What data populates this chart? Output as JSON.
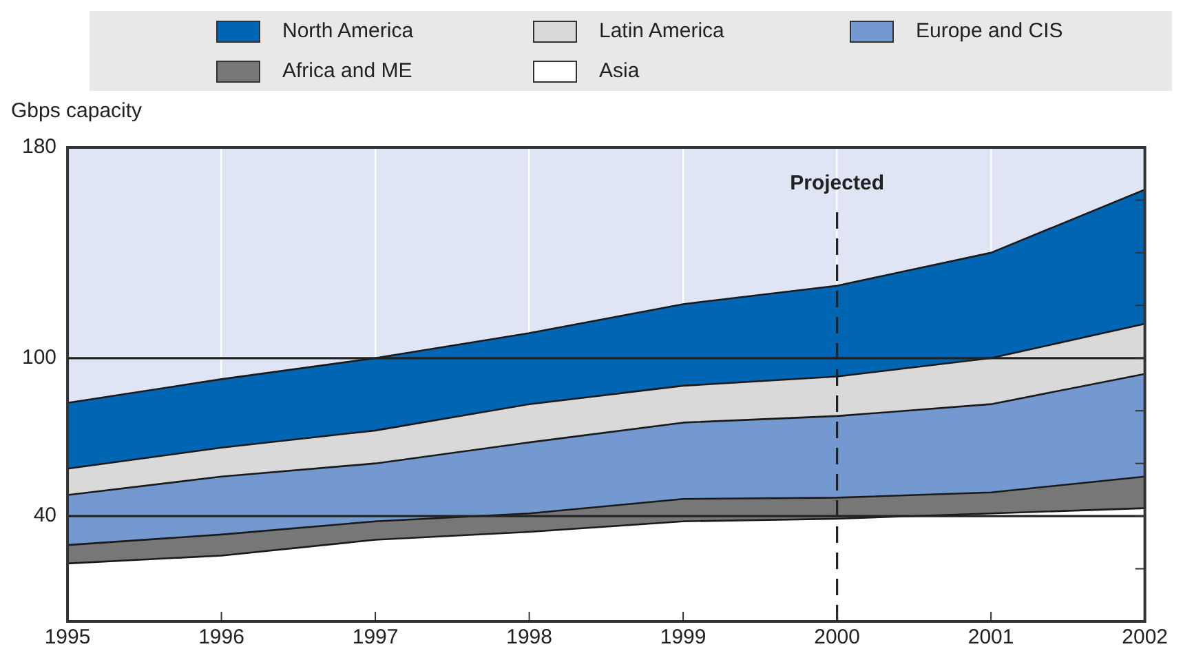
{
  "chart_data": {
    "type": "area",
    "ylabel": "Gbps capacity",
    "stacked": true,
    "x": [
      1995,
      1996,
      1997,
      1998,
      1999,
      2000,
      2001,
      2002
    ],
    "series": [
      {
        "name": "Asia",
        "color": "#ffffff",
        "values": [
          22,
          25,
          31,
          34,
          38,
          39,
          41,
          43
        ]
      },
      {
        "name": "Africa and ME",
        "color": "#777777",
        "values": [
          7,
          8,
          7,
          7,
          8.5,
          8,
          8,
          12
        ]
      },
      {
        "name": "Europe and CIS",
        "color": "#7399d0",
        "values": [
          19,
          22,
          22,
          27,
          29,
          31,
          33.5,
          39
        ]
      },
      {
        "name": "Latin America",
        "color": "#d9d9d9",
        "values": [
          10,
          11,
          12.5,
          14.5,
          14,
          15,
          17.5,
          19
        ]
      },
      {
        "name": "North America",
        "color": "#0066b3",
        "values": [
          25,
          26,
          27.5,
          27,
          31,
          34.5,
          40,
          51
        ]
      }
    ],
    "xlim": [
      1995,
      2002
    ],
    "xticks": [
      1995,
      1996,
      1997,
      1998,
      1999,
      2000,
      2001,
      2002
    ],
    "ylim": [
      0,
      180
    ],
    "yticks": [
      {
        "value": 0,
        "label": null
      },
      {
        "value": 20,
        "label": null
      },
      40,
      {
        "value": 60,
        "label": null
      },
      {
        "value": 80,
        "label": null
      },
      100,
      {
        "value": 120,
        "label": null
      },
      {
        "value": 140,
        "label": null
      },
      {
        "value": 160,
        "label": null
      },
      180
    ],
    "ref_lines": [
      {
        "axis": "x",
        "value": 2000,
        "label": "Projected",
        "line_style": "dashed",
        "color": "#222222"
      },
      {
        "axis": "y",
        "value": 100,
        "color": "#222222"
      },
      {
        "axis": "y",
        "value": 40,
        "color": "#222222"
      }
    ],
    "grid": "x",
    "legend": "top"
  }
}
